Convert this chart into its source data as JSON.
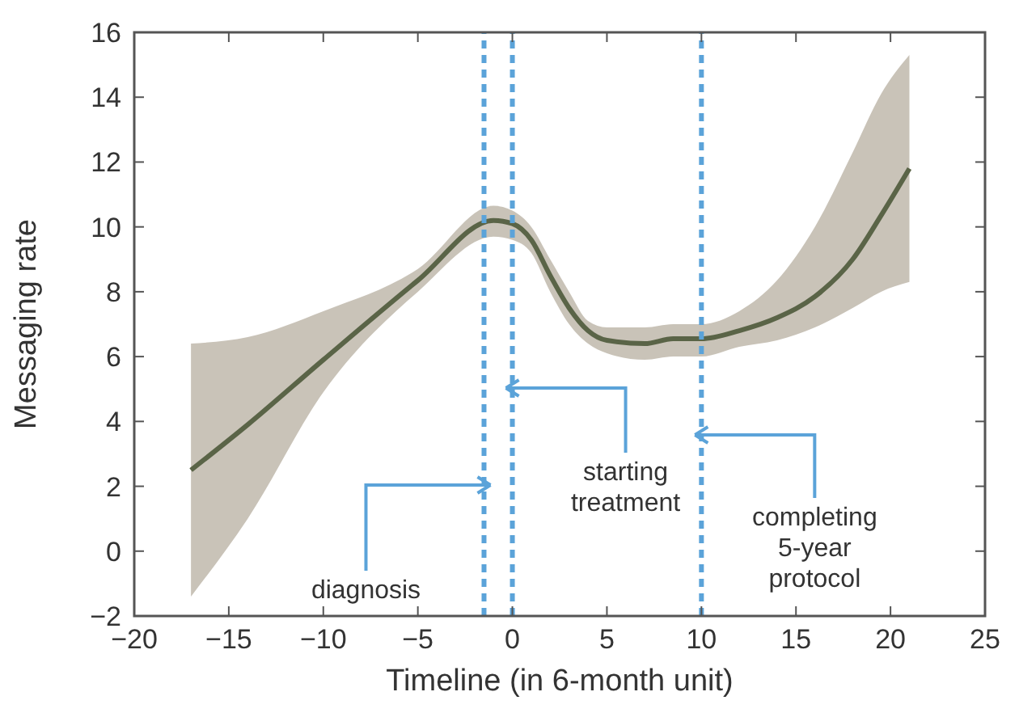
{
  "chart_data": {
    "type": "line",
    "xlabel": "Timeline (in 6-month unit)",
    "ylabel": "Messaging rate",
    "xlim": [
      -20,
      25
    ],
    "xticks": [
      -20,
      -15,
      -10,
      -5,
      0,
      5,
      10,
      15,
      20,
      25
    ],
    "ylim": [
      -2,
      16
    ],
    "yticks": [
      -2,
      0,
      2,
      4,
      6,
      8,
      10,
      12,
      14,
      16
    ],
    "grid": false,
    "line_style": "solid",
    "marker": "none",
    "series": [
      {
        "color": "#5a6447",
        "x": [
          -17,
          -14,
          -10,
          -5,
          -1,
          0,
          1,
          2,
          3,
          4,
          5,
          7,
          8.5,
          10,
          12,
          14,
          16,
          18,
          19.5,
          21
        ],
        "values": [
          2.5,
          3.9,
          5.9,
          8.35,
          10.2,
          10.1,
          9.6,
          8.5,
          7.5,
          6.8,
          6.5,
          6.4,
          6.55,
          6.55,
          6.8,
          7.2,
          7.85,
          9.0,
          10.35,
          11.8
        ],
        "lower": [
          -1.4,
          1.0,
          4.9,
          8.0,
          9.7,
          9.6,
          9.2,
          8.0,
          7.0,
          6.4,
          6.1,
          5.9,
          6.0,
          6.0,
          6.3,
          6.5,
          6.9,
          7.5,
          8.0,
          8.3
        ],
        "upper": [
          6.4,
          6.6,
          7.4,
          8.7,
          10.65,
          10.5,
          10.0,
          9.0,
          8.0,
          7.1,
          6.9,
          6.9,
          7.0,
          7.0,
          7.4,
          8.35,
          10.0,
          12.3,
          14.1,
          15.3
        ]
      }
    ],
    "ref_lines": [
      {
        "axis": "x",
        "value": -1.5,
        "label": "diagnosis",
        "color": "#5ba3d9",
        "line_style": "dashed"
      },
      {
        "axis": "x",
        "value": 0,
        "label": "starting treatment",
        "color": "#5ba3d9",
        "line_style": "dashed"
      },
      {
        "axis": "x",
        "value": 10,
        "label": "completing 5-year protocol",
        "color": "#5ba3d9",
        "line_style": "dashed"
      }
    ]
  }
}
